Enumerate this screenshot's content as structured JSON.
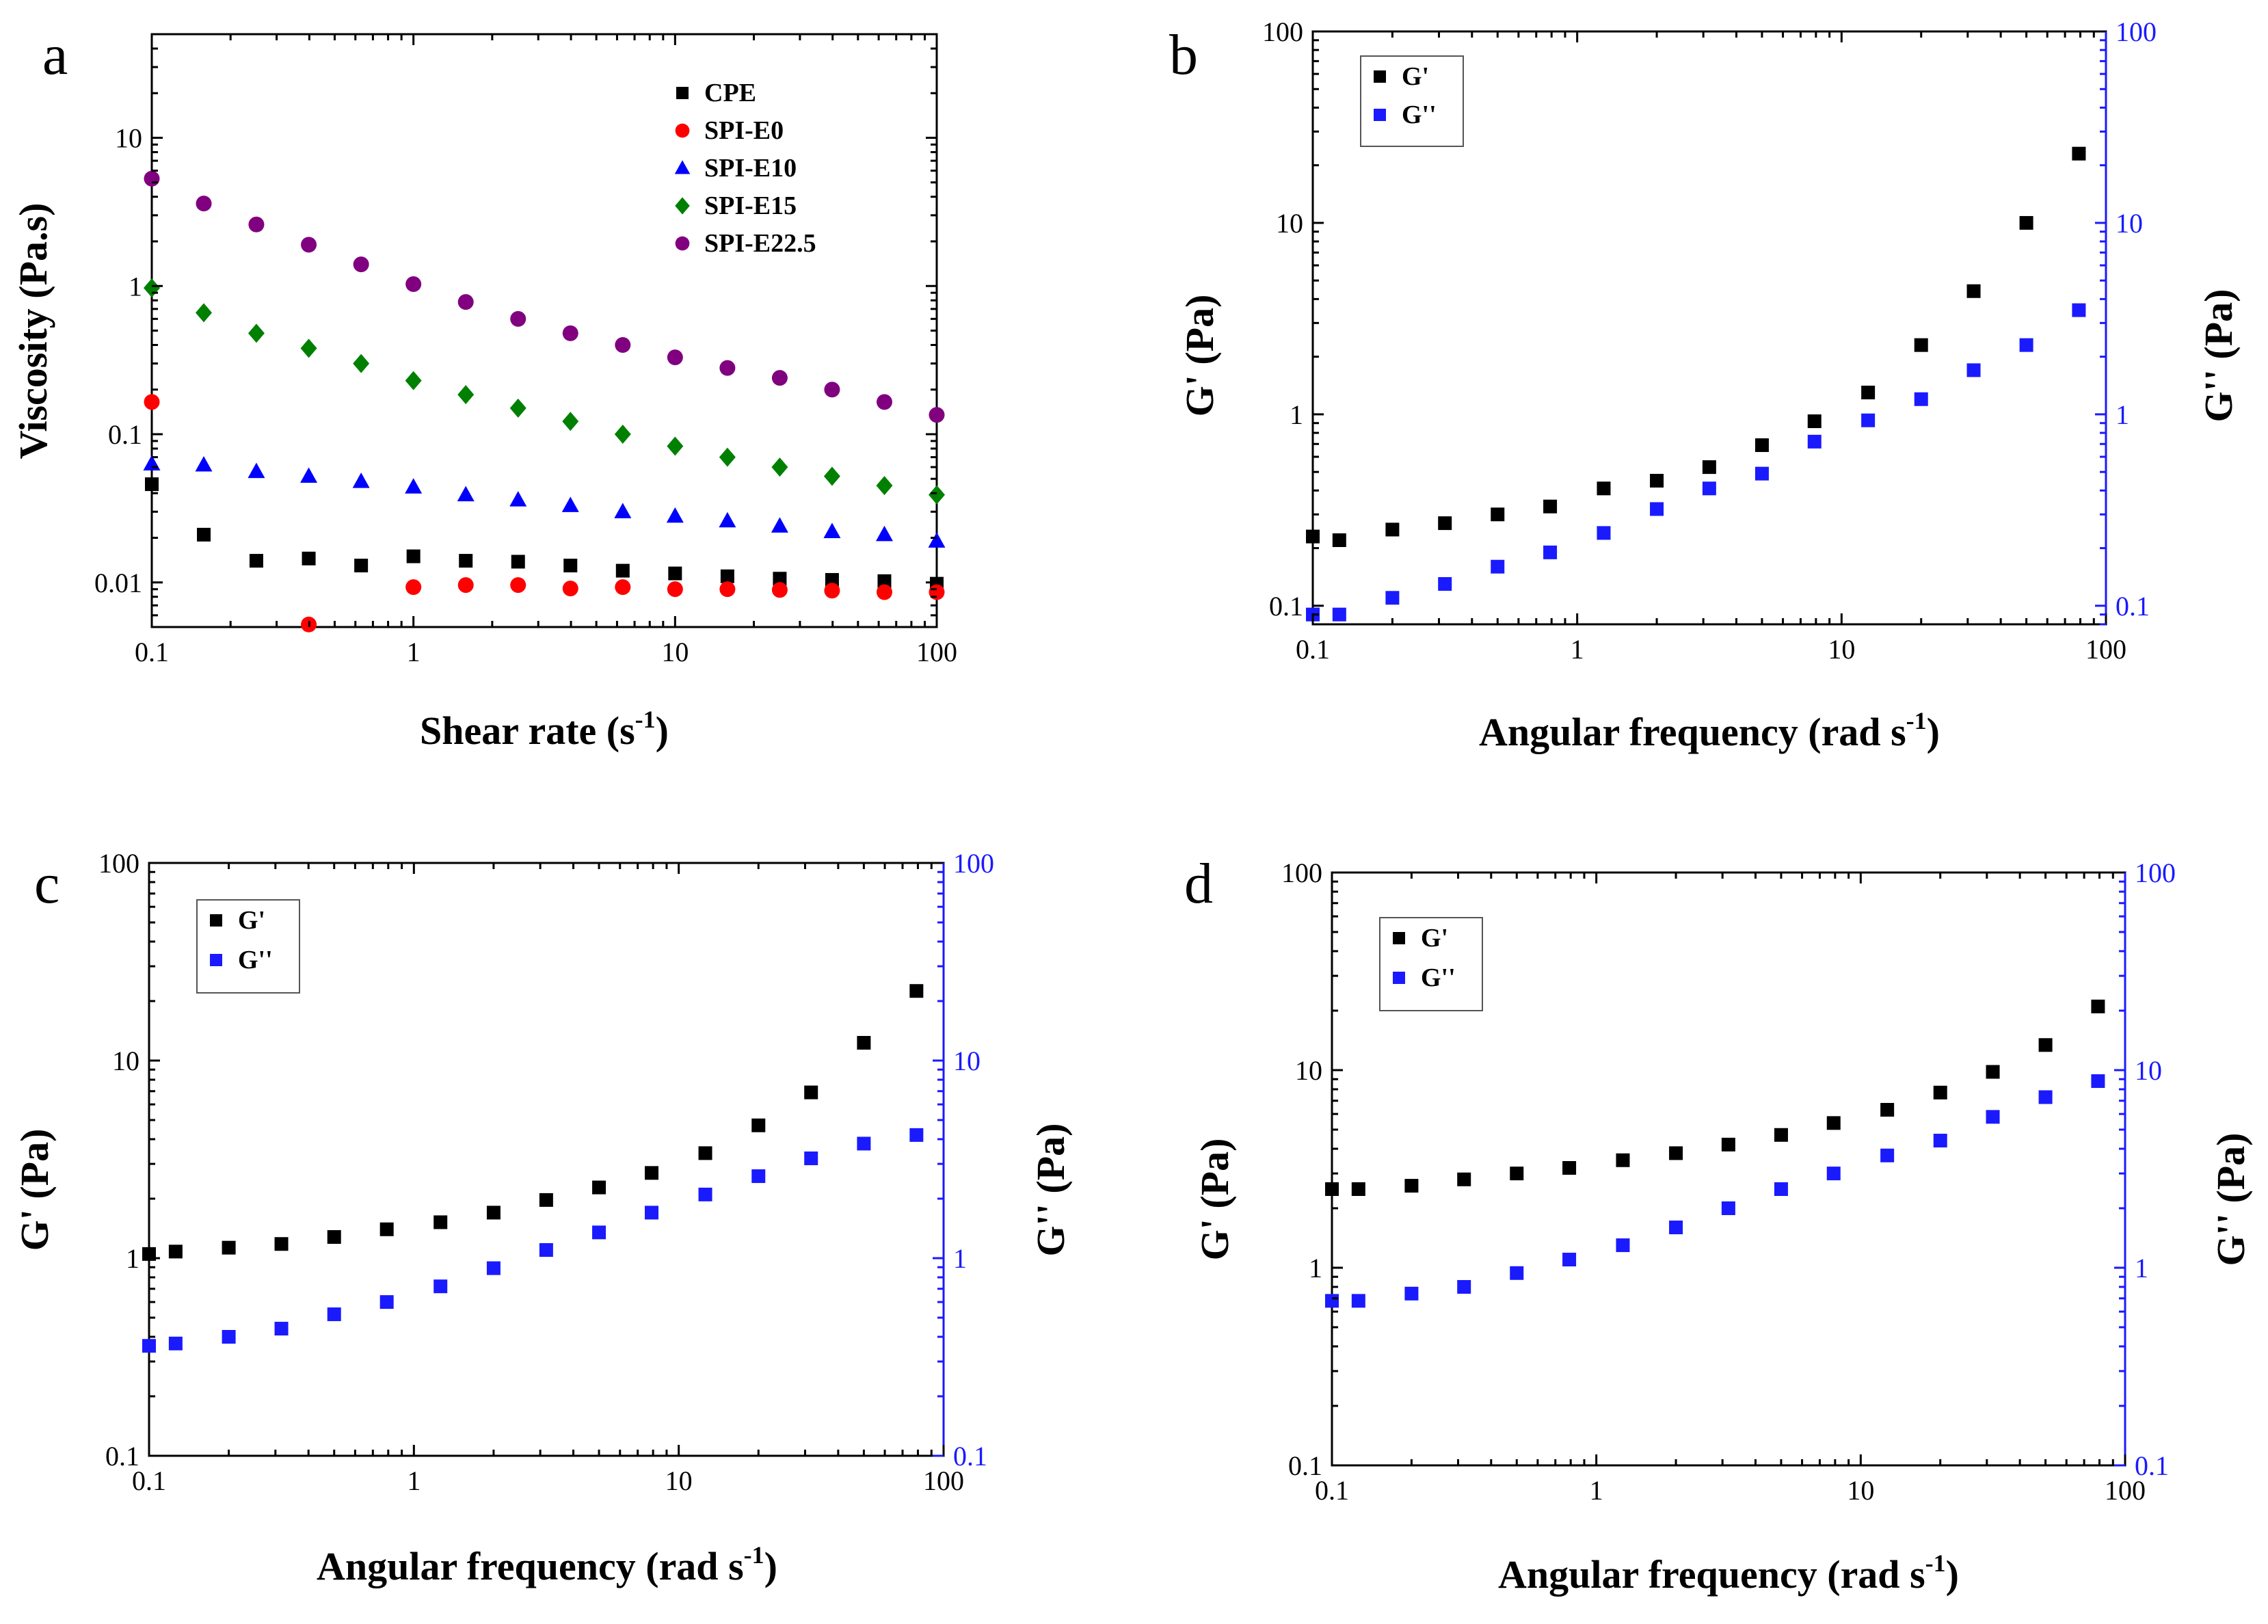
{
  "chart_data": [
    {
      "panel": "a",
      "type": "scatter",
      "xlabel": "Shear rate (s",
      "xlabel_sup": "-1",
      "xlabel_end": ")",
      "ylabel": "Viscosity (Pa.s)",
      "xscale": "log",
      "yscale": "log",
      "xlim": [
        0.1,
        100
      ],
      "ylim": [
        0.005,
        50
      ],
      "x_ticks": [
        0.1,
        1,
        10,
        100
      ],
      "x_tick_labels": [
        "0.1",
        "1",
        "10",
        "100"
      ],
      "y_ticks": [
        0.01,
        0.1,
        1,
        10
      ],
      "y_tick_labels": [
        "0.01",
        "0.1",
        "1",
        "10"
      ],
      "legend_position": "top-right",
      "series": [
        {
          "name": "CPE",
          "marker": "square",
          "color": "#000000",
          "x": [
            0.1,
            0.158,
            0.251,
            0.398,
            0.631,
            1,
            1.585,
            2.512,
            3.981,
            6.31,
            10,
            15.85,
            25.12,
            39.81,
            63.1,
            100
          ],
          "y": [
            0.046,
            0.021,
            0.014,
            0.0145,
            0.013,
            0.015,
            0.014,
            0.0138,
            0.013,
            0.012,
            0.0115,
            0.011,
            0.0106,
            0.0104,
            0.0102,
            0.0098
          ]
        },
        {
          "name": "SPI-E0",
          "marker": "circle",
          "color": "#ff0000",
          "x": [
            0.1,
            0.398,
            1,
            1.585,
            2.512,
            3.981,
            6.31,
            10,
            15.85,
            25.12,
            39.81,
            63.1,
            100
          ],
          "y": [
            0.165,
            0.0052,
            0.0093,
            0.0096,
            0.0096,
            0.0091,
            0.0093,
            0.009,
            0.009,
            0.0089,
            0.0088,
            0.0086,
            0.0086
          ]
        },
        {
          "name": "SPI-E10",
          "marker": "triangle",
          "color": "#0000ff",
          "x": [
            0.1,
            0.158,
            0.251,
            0.398,
            0.631,
            1,
            1.585,
            2.512,
            3.981,
            6.31,
            10,
            15.85,
            25.12,
            39.81,
            63.1,
            100
          ],
          "y": [
            0.063,
            0.062,
            0.056,
            0.052,
            0.048,
            0.044,
            0.039,
            0.036,
            0.033,
            0.03,
            0.028,
            0.026,
            0.024,
            0.022,
            0.021,
            0.019
          ]
        },
        {
          "name": "SPI-E15",
          "marker": "diamond",
          "color": "#008000",
          "x": [
            0.1,
            0.158,
            0.251,
            0.398,
            0.631,
            1,
            1.585,
            2.512,
            3.981,
            6.31,
            10,
            15.85,
            25.12,
            39.81,
            63.1,
            100
          ],
          "y": [
            0.97,
            0.66,
            0.48,
            0.38,
            0.3,
            0.23,
            0.185,
            0.15,
            0.122,
            0.1,
            0.083,
            0.07,
            0.06,
            0.052,
            0.045,
            0.039
          ]
        },
        {
          "name": "SPI-E22.5",
          "marker": "circle",
          "color": "#800080",
          "x": [
            0.1,
            0.158,
            0.251,
            0.398,
            0.631,
            1,
            1.585,
            2.512,
            3.981,
            6.31,
            10,
            15.85,
            25.12,
            39.81,
            63.1,
            100
          ],
          "y": [
            5.3,
            3.6,
            2.6,
            1.9,
            1.4,
            1.03,
            0.78,
            0.6,
            0.48,
            0.4,
            0.33,
            0.28,
            0.24,
            0.2,
            0.165,
            0.135
          ]
        }
      ]
    },
    {
      "panel": "b",
      "type": "scatter",
      "xlabel": "Angular frequency (rad s",
      "xlabel_sup": "-1",
      "xlabel_end": ")",
      "ylabel": "G' (Pa)",
      "ylabel_right": "G'' (Pa)",
      "xscale": "log",
      "yscale": "log",
      "xlim": [
        0.1,
        100
      ],
      "ylim": [
        0.08,
        100
      ],
      "x_ticks": [
        0.1,
        1,
        10,
        100
      ],
      "x_tick_labels": [
        "0.1",
        "1",
        "10",
        "100"
      ],
      "y_ticks": [
        0.1,
        1,
        10,
        100
      ],
      "y_tick_labels": [
        "0.1",
        "1",
        "10",
        "100"
      ],
      "legend_position": "top-left",
      "series": [
        {
          "name": "G'",
          "marker": "square",
          "color": "#000000",
          "x": [
            0.1,
            0.126,
            0.2,
            0.316,
            0.5,
            0.79,
            1.26,
            2,
            3.16,
            5,
            7.9,
            12.6,
            20,
            31.6,
            50,
            79
          ],
          "y": [
            0.23,
            0.22,
            0.25,
            0.27,
            0.3,
            0.33,
            0.41,
            0.45,
            0.53,
            0.69,
            0.92,
            1.3,
            2.3,
            4.4,
            10,
            23
          ]
        },
        {
          "name": "G''",
          "marker": "square",
          "color": "#1a1aff",
          "x": [
            0.1,
            0.126,
            0.2,
            0.316,
            0.5,
            0.79,
            1.26,
            2,
            3.16,
            5,
            7.9,
            12.6,
            20,
            31.6,
            50,
            79
          ],
          "y": [
            0.09,
            0.09,
            0.11,
            0.13,
            0.16,
            0.19,
            0.24,
            0.32,
            0.41,
            0.49,
            0.72,
            0.93,
            1.2,
            1.7,
            2.3,
            3.5
          ]
        }
      ]
    },
    {
      "panel": "c",
      "type": "scatter",
      "xlabel": "Angular frequency (rad s",
      "xlabel_sup": "-1",
      "xlabel_end": ")",
      "ylabel": "G' (Pa)",
      "ylabel_right": "G'' (Pa)",
      "xscale": "log",
      "yscale": "log",
      "xlim": [
        0.1,
        100
      ],
      "ylim": [
        0.1,
        100
      ],
      "x_ticks": [
        0.1,
        1,
        10,
        100
      ],
      "x_tick_labels": [
        "0.1",
        "1",
        "10",
        "100"
      ],
      "y_ticks": [
        0.1,
        1,
        10,
        100
      ],
      "y_tick_labels": [
        "0.1",
        "1",
        "10",
        "100"
      ],
      "legend_position": "top-left",
      "series": [
        {
          "name": "G'",
          "marker": "square",
          "color": "#000000",
          "x": [
            0.1,
            0.126,
            0.2,
            0.316,
            0.5,
            0.79,
            1.26,
            2,
            3.16,
            5,
            7.9,
            12.6,
            20,
            31.6,
            50,
            79
          ],
          "y": [
            1.05,
            1.08,
            1.13,
            1.18,
            1.28,
            1.4,
            1.52,
            1.7,
            1.97,
            2.28,
            2.7,
            3.4,
            4.7,
            6.9,
            12.3,
            22.5
          ]
        },
        {
          "name": "G''",
          "marker": "square",
          "color": "#1a1aff",
          "x": [
            0.1,
            0.126,
            0.2,
            0.316,
            0.5,
            0.79,
            1.26,
            2,
            3.16,
            5,
            7.9,
            12.6,
            20,
            31.6,
            50,
            79
          ],
          "y": [
            0.36,
            0.37,
            0.4,
            0.44,
            0.52,
            0.6,
            0.72,
            0.89,
            1.1,
            1.35,
            1.7,
            2.1,
            2.6,
            3.2,
            3.8,
            4.2
          ]
        }
      ]
    },
    {
      "panel": "d",
      "type": "scatter",
      "xlabel": "Angular frequency (rad s",
      "xlabel_sup": "-1",
      "xlabel_end": ")",
      "ylabel": "G' (Pa)",
      "ylabel_right": "G'' (Pa)",
      "xscale": "log",
      "yscale": "log",
      "xlim": [
        0.1,
        100
      ],
      "ylim": [
        0.1,
        100
      ],
      "x_ticks": [
        0.1,
        1,
        10,
        100
      ],
      "x_tick_labels": [
        "0.1",
        "1",
        "10",
        "100"
      ],
      "y_ticks": [
        0.1,
        1,
        10,
        100
      ],
      "y_tick_labels": [
        "0.1",
        "1",
        "10",
        "100"
      ],
      "legend_position": "top-left",
      "series": [
        {
          "name": "G'",
          "marker": "square",
          "color": "#000000",
          "x": [
            0.1,
            0.126,
            0.2,
            0.316,
            0.5,
            0.79,
            1.26,
            2,
            3.16,
            5,
            7.9,
            12.6,
            20,
            31.6,
            50,
            79
          ],
          "y": [
            2.5,
            2.5,
            2.6,
            2.8,
            3,
            3.2,
            3.5,
            3.8,
            4.2,
            4.7,
            5.4,
            6.3,
            7.7,
            9.8,
            13.4,
            21
          ]
        },
        {
          "name": "G''",
          "marker": "square",
          "color": "#1a1aff",
          "x": [
            0.1,
            0.126,
            0.2,
            0.316,
            0.5,
            0.79,
            1.26,
            2,
            3.16,
            5,
            7.9,
            12.6,
            20,
            31.6,
            50,
            79
          ],
          "y": [
            0.68,
            0.68,
            0.74,
            0.8,
            0.94,
            1.1,
            1.3,
            1.6,
            2,
            2.5,
            3,
            3.7,
            4.4,
            5.8,
            7.3,
            8.8
          ]
        }
      ]
    }
  ],
  "panel_letters": [
    "a",
    "b",
    "c",
    "d"
  ]
}
